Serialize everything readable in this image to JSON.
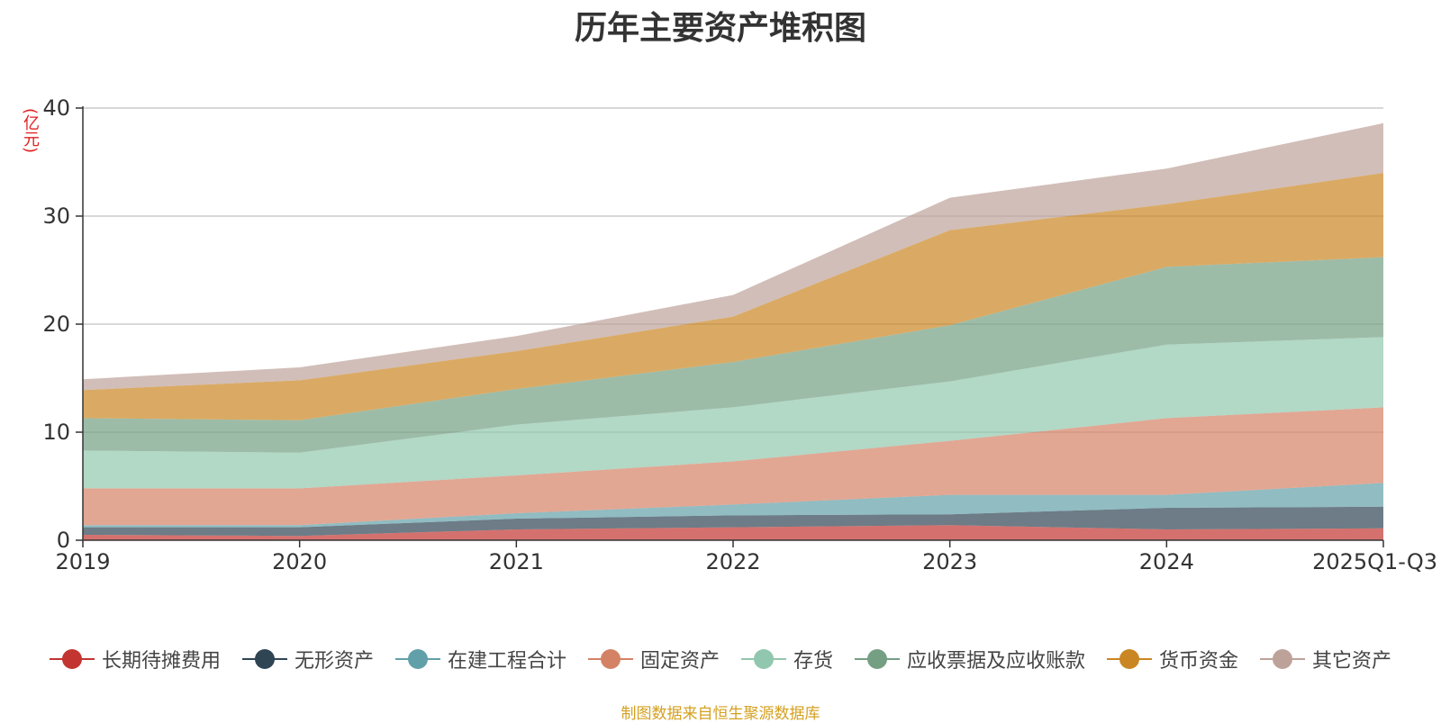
{
  "chart_data": {
    "type": "area",
    "stacked": true,
    "title": "历年主要资产堆积图",
    "ylabel": "(亿元)",
    "ylim": [
      0,
      40
    ],
    "yticks": [
      0,
      10,
      20,
      30,
      40
    ],
    "categories": [
      "2019",
      "2020",
      "2021",
      "2022",
      "2023",
      "2024",
      "2025Q1-Q3"
    ],
    "series": [
      {
        "name": "长期待摊费用",
        "color": "#c23531",
        "values": [
          0.5,
          0.4,
          1.0,
          1.2,
          1.4,
          1.0,
          1.1
        ]
      },
      {
        "name": "无形资产",
        "color": "#2f4554",
        "values": [
          0.7,
          0.8,
          1.0,
          1.1,
          1.0,
          2.0,
          2.0
        ]
      },
      {
        "name": "在建工程合计",
        "color": "#61a0a8",
        "values": [
          0.2,
          0.2,
          0.5,
          1.0,
          1.8,
          1.2,
          2.2
        ]
      },
      {
        "name": "固定资产",
        "color": "#d48265",
        "values": [
          3.4,
          3.4,
          3.5,
          4.0,
          5.0,
          7.1,
          7.0
        ]
      },
      {
        "name": "存货",
        "color": "#91c7ae",
        "values": [
          3.5,
          3.3,
          4.7,
          5.0,
          5.5,
          6.8,
          6.5
        ]
      },
      {
        "name": "应收票据及应收账款",
        "color": "#749f83",
        "values": [
          3.0,
          3.0,
          3.3,
          4.2,
          5.2,
          7.2,
          7.4
        ]
      },
      {
        "name": "货币资金",
        "color": "#ca8622",
        "values": [
          2.6,
          3.7,
          3.5,
          4.2,
          8.8,
          5.8,
          7.8
        ]
      },
      {
        "name": "其它资产",
        "color": "#bda29a",
        "values": [
          1.0,
          1.2,
          1.4,
          2.0,
          3.0,
          3.3,
          4.6
        ]
      }
    ]
  },
  "source_note": "制图数据来自恒生聚源数据库"
}
